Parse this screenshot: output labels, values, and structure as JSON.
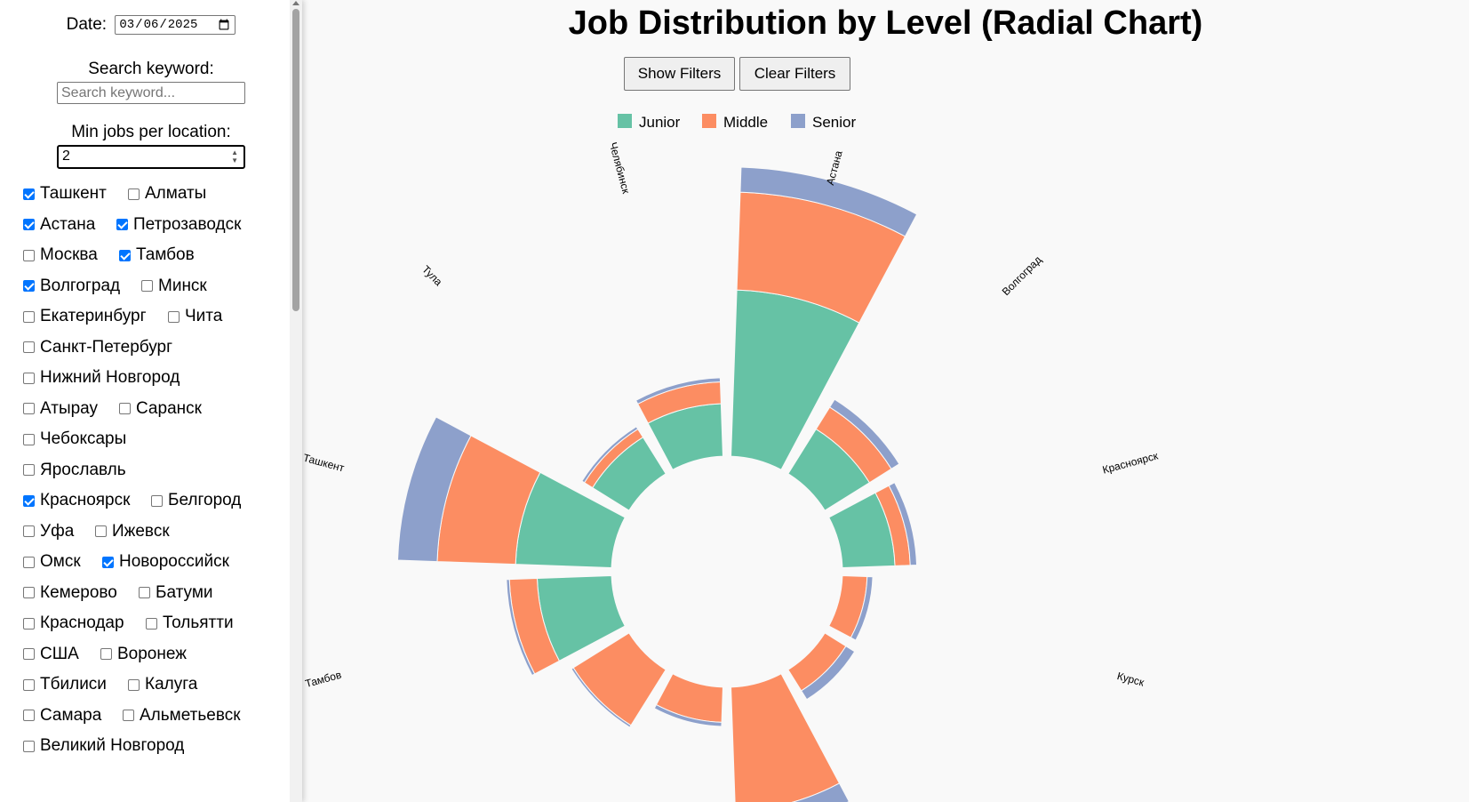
{
  "sidebar": {
    "date_label": "Date:",
    "date_value": "2025-03-06",
    "keyword_label": "Search keyword:",
    "keyword_placeholder": "Search keyword...",
    "keyword_value": "",
    "min_jobs_label": "Min jobs per location:",
    "min_jobs_value": "2",
    "locations": [
      {
        "label": "Ташкент",
        "checked": true
      },
      {
        "label": "Алматы",
        "checked": false
      },
      {
        "label": "Астана",
        "checked": true
      },
      {
        "label": "Петрозаводск",
        "checked": true
      },
      {
        "label": "Москва",
        "checked": false
      },
      {
        "label": "Тамбов",
        "checked": true
      },
      {
        "label": "Волгоград",
        "checked": true
      },
      {
        "label": "Минск",
        "checked": false
      },
      {
        "label": "Екатеринбург",
        "checked": false
      },
      {
        "label": "Чита",
        "checked": false
      },
      {
        "label": "Санкт-Петербург",
        "checked": false
      },
      {
        "label": "Нижний Новгород",
        "checked": false
      },
      {
        "label": "Атырау",
        "checked": false
      },
      {
        "label": "Саранск",
        "checked": false
      },
      {
        "label": "Чебоксары",
        "checked": false
      },
      {
        "label": "Ярославль",
        "checked": false
      },
      {
        "label": "Красноярск",
        "checked": true
      },
      {
        "label": "Белгород",
        "checked": false
      },
      {
        "label": "Уфа",
        "checked": false
      },
      {
        "label": "Ижевск",
        "checked": false
      },
      {
        "label": "Омск",
        "checked": false
      },
      {
        "label": "Новороссийск",
        "checked": true
      },
      {
        "label": "Кемерово",
        "checked": false
      },
      {
        "label": "Батуми",
        "checked": false
      },
      {
        "label": "Краснодар",
        "checked": false
      },
      {
        "label": "Тольятти",
        "checked": false
      },
      {
        "label": "США",
        "checked": false
      },
      {
        "label": "Воронеж",
        "checked": false
      },
      {
        "label": "Тбилиси",
        "checked": false
      },
      {
        "label": "Калуга",
        "checked": false
      },
      {
        "label": "Самара",
        "checked": false
      },
      {
        "label": "Альметьевск",
        "checked": false
      },
      {
        "label": "Великий Новгород",
        "checked": false
      }
    ]
  },
  "header": {
    "title": "Job Distribution by Level (Radial Chart)",
    "show_filters_label": "Show Filters",
    "clear_filters_label": "Clear Filters"
  },
  "colors": {
    "junior": "#66c2a5",
    "middle": "#fc8d62",
    "senior": "#8da0cb"
  },
  "chart_data": {
    "type": "bar",
    "subtype": "radial-stacked",
    "title": "Job Distribution by Level (Radial Chart)",
    "legend": [
      "Junior",
      "Middle",
      "Senior"
    ],
    "legend_position": "top",
    "categories": [
      "Астана",
      "Волгоград",
      "Красноярск",
      "Курск",
      "",
      "",
      "",
      "",
      "Тамбов",
      "Ташкент",
      "Тула",
      "Челябинск"
    ],
    "series": [
      {
        "name": "Junior",
        "values": [
          90,
          9,
          9,
          0,
          0,
          0,
          0,
          0,
          18,
          30,
          6,
          9
        ]
      },
      {
        "name": "Middle",
        "values": [
          137,
          11,
          6,
          2,
          2,
          50,
          4,
          14,
          16,
          69,
          3,
          9
        ]
      },
      {
        "name": "Senior",
        "values": [
          45,
          5,
          3,
          1,
          2,
          18,
          1,
          1,
          2,
          50,
          1,
          2
        ]
      }
    ]
  }
}
